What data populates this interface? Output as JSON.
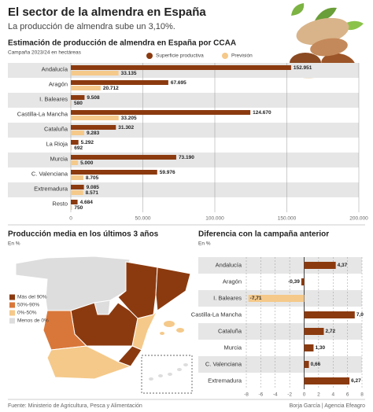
{
  "header": {
    "title": "El sector de la almendra en España",
    "subtitle": "La producción de almendra sube un 3,10%."
  },
  "chart_data": [
    {
      "type": "grouped-hbar",
      "title": "Estimación de producción de almendra en España por CCAA",
      "subtitle": "Campaña 2023/24 en hectáreas",
      "categories": [
        "Andalucía",
        "Aragón",
        "I. Baleares",
        "Castilla-La Mancha",
        "Cataluña",
        "La Rioja",
        "Murcia",
        "C. Valenciana",
        "Extremadura",
        "Resto"
      ],
      "series": [
        {
          "name": "Superficie productiva",
          "color": "#8b3a0f",
          "values": [
            152951,
            67695,
            9508,
            124670,
            31302,
            5292,
            73190,
            59976,
            9085,
            4684
          ],
          "value_labels": [
            "152.951",
            "67.695",
            "9.508",
            "124.670",
            "31.302",
            "5.292",
            "73.190",
            "59.976",
            "9.085",
            "4.684"
          ]
        },
        {
          "name": "Previsión",
          "color": "#f5c98a",
          "values": [
            33135,
            20712,
            580,
            33205,
            9283,
            692,
            5000,
            8705,
            8571,
            750
          ],
          "value_labels": [
            "33.135",
            "20.712",
            "580",
            "33.205",
            "9.283",
            "692",
            "5.000",
            "8.705",
            "8.571",
            "750"
          ]
        }
      ],
      "xlim": [
        0,
        200000
      ],
      "xticks": [
        0,
        {
          "value": 50000,
          "label": "50.000"
        },
        {
          "value": 100000,
          "label": "100.000"
        },
        {
          "value": 150000,
          "label": "150.000"
        },
        {
          "value": 200000,
          "label": "200.000"
        }
      ],
      "grid": true
    },
    {
      "type": "map",
      "title": "Producción media en los últimos 3 años",
      "subtitle": "En %",
      "legend": [
        {
          "label": "Más del 90%",
          "color": "#8b3a0f"
        },
        {
          "label": "50%-90%",
          "color": "#d9773a"
        },
        {
          "label": "0%-50%",
          "color": "#f5c98a"
        },
        {
          "label": "Menos de 0%",
          "color": "#dddddd"
        }
      ]
    },
    {
      "type": "diverging-hbar",
      "title": "Diferencia con la campaña anterior",
      "subtitle": "En %",
      "categories": [
        "Andalucía",
        "Aragón",
        "I. Baleares",
        "Castilla-La Mancha",
        "Cataluña",
        "Murcia",
        "C. Valenciana",
        "Extremadura"
      ],
      "values": [
        4.37,
        -0.39,
        -7.71,
        7.0,
        2.72,
        1.3,
        0.66,
        6.27
      ],
      "value_labels": [
        "4,37",
        "-0,39",
        "-7,71",
        "7,0",
        "2,72",
        "1,30",
        "0,66",
        "6,27"
      ],
      "colors": [
        "#8b3a0f",
        "#8b3a0f",
        "#f5c98a",
        "#8b3a0f",
        "#8b3a0f",
        "#8b3a0f",
        "#8b3a0f",
        "#8b3a0f"
      ],
      "xlim": [
        -8,
        8
      ],
      "xticks": [
        -8,
        -6,
        -4,
        -2,
        0,
        2,
        4,
        6,
        8
      ],
      "grid": true
    }
  ],
  "footer": {
    "source": "Fuente: Ministerio de Agricultura, Pesca y Alimentación",
    "credit": "Borja García | Agencia Efeagro"
  }
}
